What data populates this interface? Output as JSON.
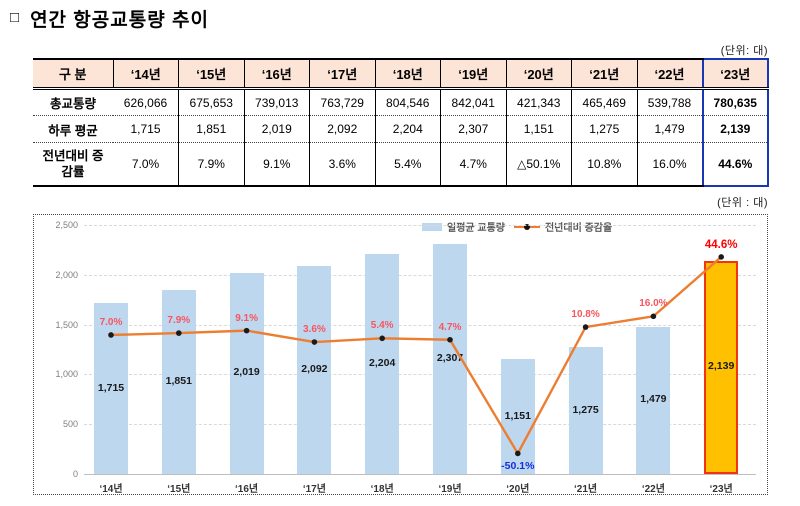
{
  "page": {
    "title_bullet": "□",
    "title": "연간 항공교통량 추이",
    "table_unit": "(단위: 대)",
    "chart_unit": "(단위 : 대)"
  },
  "table": {
    "corner_header": "구 분",
    "years": [
      "‘14년",
      "‘15년",
      "‘16년",
      "‘17년",
      "‘18년",
      "‘19년",
      "‘20년",
      "‘21년",
      "‘22년",
      "‘23년"
    ],
    "rows": [
      {
        "label": "총교통량",
        "values": [
          "626,066",
          "675,653",
          "739,013",
          "763,729",
          "804,546",
          "842,041",
          "421,343",
          "465,469",
          "539,788",
          "780,635"
        ]
      },
      {
        "label": "하루 평균",
        "values": [
          "1,715",
          "1,851",
          "2,019",
          "2,092",
          "2,204",
          "2,307",
          "1,151",
          "1,275",
          "1,479",
          "2,139"
        ]
      },
      {
        "label": "전년대비 증감률",
        "values": [
          "7.0%",
          "7.9%",
          "9.1%",
          "3.6%",
          "5.4%",
          "4.7%",
          "△50.1%",
          "10.8%",
          "16.0%",
          "44.6%"
        ]
      }
    ],
    "highlight_col": 9
  },
  "chart_data": {
    "type": "bar",
    "title": "",
    "categories": [
      "‘14년",
      "‘15년",
      "‘16년",
      "‘17년",
      "‘18년",
      "‘19년",
      "‘20년",
      "‘21년",
      "‘22년",
      "‘23년"
    ],
    "series": [
      {
        "name": "일평균 교통량",
        "type": "bar",
        "values": [
          1715,
          1851,
          2019,
          2092,
          2204,
          2307,
          1151,
          1275,
          1479,
          2139
        ],
        "labels": [
          "1,715",
          "1,851",
          "2,019",
          "2,092",
          "2,204",
          "2,307",
          "1,151",
          "1,275",
          "1,479",
          "2,139"
        ]
      },
      {
        "name": "전년대비 증감율",
        "type": "line",
        "values": [
          7.0,
          7.9,
          9.1,
          3.6,
          5.4,
          4.7,
          -50.1,
          10.8,
          16.0,
          44.6
        ],
        "labels": [
          "7.0%",
          "7.9%",
          "9.1%",
          "3.6%",
          "5.4%",
          "4.7%",
          "-50.1%",
          "10.8%",
          "16.0%",
          "44.6%"
        ]
      }
    ],
    "ylim_left": [
      0,
      2500
    ],
    "ytick_step": 500,
    "ylim_right": [
      -60,
      60
    ],
    "grid": "horizontal-dashed",
    "legend_position": "top-center",
    "highlight_last_category": true
  },
  "colors": {
    "bar_color": "#BDD7EE",
    "line_color": "#ED7D31",
    "dot_color": "#1a1a1a",
    "highlight_bar_color": "#FFC000",
    "highlight_bar_border": "#F0350F",
    "pct_label_color": "#F8555F",
    "pct_label_negative": "#1430DD",
    "pct_label_final": "#FF0000",
    "table_header_bg": "#FCE4D6",
    "highlight_col_border": "#1B36B5"
  }
}
